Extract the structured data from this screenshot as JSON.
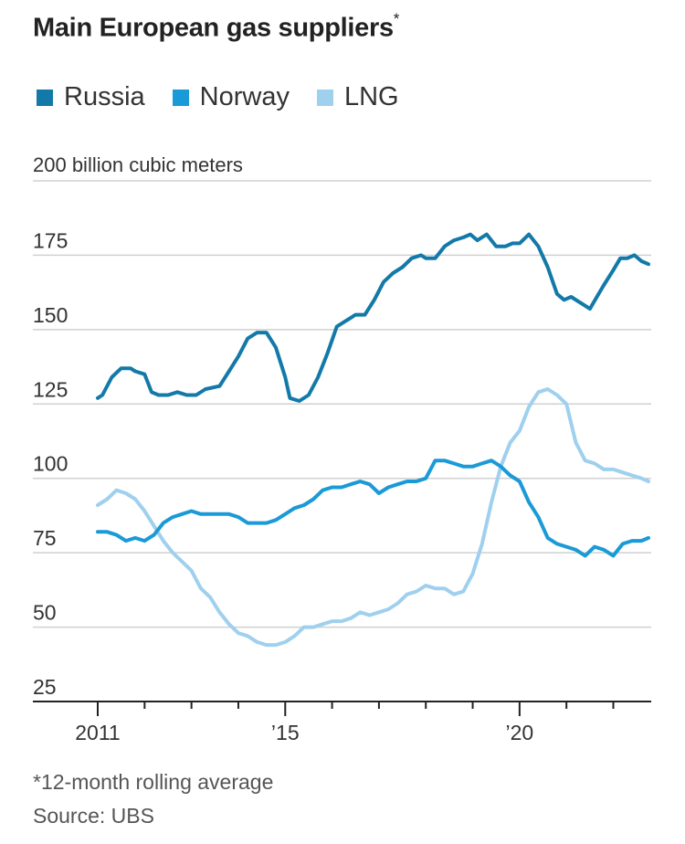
{
  "title": "Main European gas suppliers",
  "title_marker": "*",
  "unit_label": "200 billion cubic meters",
  "footnote": "*12-month rolling average",
  "source": "Source: UBS",
  "colors": {
    "russia": "#1379a8",
    "norway": "#1a9ad6",
    "lng": "#9fd0ee",
    "grid": "#d0d0d0",
    "axis": "#222222"
  },
  "chart_data": {
    "type": "line",
    "title": "Main European gas suppliers",
    "ylabel": "200 billion cubic meters",
    "ylim": [
      25,
      200
    ],
    "xlim": [
      2011,
      2022.75
    ],
    "yticks": [
      {
        "value": 25,
        "label": "25"
      },
      {
        "value": 50,
        "label": "50"
      },
      {
        "value": 75,
        "label": "75"
      },
      {
        "value": 100,
        "label": "100"
      },
      {
        "value": 125,
        "label": "125"
      },
      {
        "value": 150,
        "label": "150"
      },
      {
        "value": 175,
        "label": "175"
      }
    ],
    "xticks": [
      2011,
      2012,
      2013,
      2014,
      2015,
      2016,
      2017,
      2018,
      2019,
      2020,
      2021,
      2022
    ],
    "xlabels": [
      {
        "value": 2011,
        "label": "2011"
      },
      {
        "value": 2015,
        "label": "’15"
      },
      {
        "value": 2020,
        "label": "’20"
      }
    ],
    "grid": true,
    "legend": "top",
    "series": [
      {
        "name": "Russia",
        "x": [
          2011.0,
          2011.1,
          2011.3,
          2011.5,
          2011.7,
          2011.8,
          2012.0,
          2012.15,
          2012.3,
          2012.5,
          2012.7,
          2012.9,
          2013.1,
          2013.3,
          2013.6,
          2013.8,
          2014.0,
          2014.2,
          2014.4,
          2014.6,
          2014.8,
          2015.0,
          2015.1,
          2015.3,
          2015.5,
          2015.7,
          2015.9,
          2016.1,
          2016.3,
          2016.5,
          2016.7,
          2016.9,
          2017.1,
          2017.3,
          2017.5,
          2017.7,
          2017.9,
          2018.0,
          2018.2,
          2018.4,
          2018.6,
          2018.8,
          2018.95,
          2019.1,
          2019.3,
          2019.5,
          2019.7,
          2019.85,
          2020.0,
          2020.2,
          2020.4,
          2020.6,
          2020.8,
          2020.95,
          2021.1,
          2021.3,
          2021.5,
          2021.65,
          2021.8,
          2022.0,
          2022.15,
          2022.3,
          2022.45,
          2022.6,
          2022.75
        ],
        "values": [
          127,
          128,
          134,
          137,
          137,
          136,
          135,
          129,
          128,
          128,
          129,
          128,
          128,
          130,
          131,
          136,
          141,
          147,
          149,
          149,
          144,
          134,
          127,
          126,
          128,
          134,
          142,
          151,
          153,
          155,
          155,
          160,
          166,
          169,
          171,
          174,
          175,
          174,
          174,
          178,
          180,
          181,
          182,
          180,
          182,
          178,
          178,
          179,
          179,
          182,
          178,
          171,
          162,
          160,
          161,
          159,
          157,
          161,
          165,
          170,
          174,
          174,
          175,
          173,
          172
        ]
      },
      {
        "name": "Norway",
        "x": [
          2011.0,
          2011.2,
          2011.4,
          2011.6,
          2011.8,
          2012.0,
          2012.2,
          2012.4,
          2012.6,
          2012.8,
          2013.0,
          2013.2,
          2013.4,
          2013.6,
          2013.8,
          2014.0,
          2014.2,
          2014.4,
          2014.6,
          2014.8,
          2015.0,
          2015.2,
          2015.4,
          2015.6,
          2015.8,
          2016.0,
          2016.2,
          2016.4,
          2016.6,
          2016.8,
          2017.0,
          2017.2,
          2017.4,
          2017.6,
          2017.8,
          2018.0,
          2018.2,
          2018.4,
          2018.6,
          2018.8,
          2019.0,
          2019.2,
          2019.4,
          2019.6,
          2019.8,
          2020.0,
          2020.2,
          2020.4,
          2020.6,
          2020.8,
          2021.0,
          2021.2,
          2021.4,
          2021.6,
          2021.8,
          2022.0,
          2022.2,
          2022.4,
          2022.6,
          2022.75
        ],
        "values": [
          82,
          82,
          81,
          79,
          80,
          79,
          81,
          85,
          87,
          88,
          89,
          88,
          88,
          88,
          88,
          87,
          85,
          85,
          85,
          86,
          88,
          90,
          91,
          93,
          96,
          97,
          97,
          98,
          99,
          98,
          95,
          97,
          98,
          99,
          99,
          100,
          106,
          106,
          105,
          104,
          104,
          105,
          106,
          104,
          101,
          99,
          92,
          87,
          80,
          78,
          77,
          76,
          74,
          77,
          76,
          74,
          78,
          79,
          79,
          80
        ]
      },
      {
        "name": "LNG",
        "x": [
          2011.0,
          2011.2,
          2011.4,
          2011.6,
          2011.8,
          2012.0,
          2012.2,
          2012.4,
          2012.6,
          2012.8,
          2013.0,
          2013.2,
          2013.4,
          2013.6,
          2013.8,
          2014.0,
          2014.2,
          2014.4,
          2014.6,
          2014.8,
          2015.0,
          2015.2,
          2015.4,
          2015.6,
          2015.8,
          2016.0,
          2016.2,
          2016.4,
          2016.6,
          2016.8,
          2017.0,
          2017.2,
          2017.4,
          2017.6,
          2017.8,
          2018.0,
          2018.2,
          2018.4,
          2018.6,
          2018.8,
          2019.0,
          2019.2,
          2019.4,
          2019.6,
          2019.8,
          2020.0,
          2020.2,
          2020.4,
          2020.6,
          2020.8,
          2021.0,
          2021.2,
          2021.4,
          2021.6,
          2021.8,
          2022.0,
          2022.2,
          2022.4,
          2022.6,
          2022.75
        ],
        "values": [
          91,
          93,
          96,
          95,
          93,
          89,
          84,
          79,
          75,
          72,
          69,
          63,
          60,
          55,
          51,
          48,
          47,
          45,
          44,
          44,
          45,
          47,
          50,
          50,
          51,
          52,
          52,
          53,
          55,
          54,
          55,
          56,
          58,
          61,
          62,
          64,
          63,
          63,
          61,
          62,
          68,
          78,
          92,
          104,
          112,
          116,
          124,
          129,
          130,
          128,
          125,
          112,
          106,
          105,
          103,
          103,
          102,
          101,
          100,
          99
        ]
      }
    ]
  }
}
